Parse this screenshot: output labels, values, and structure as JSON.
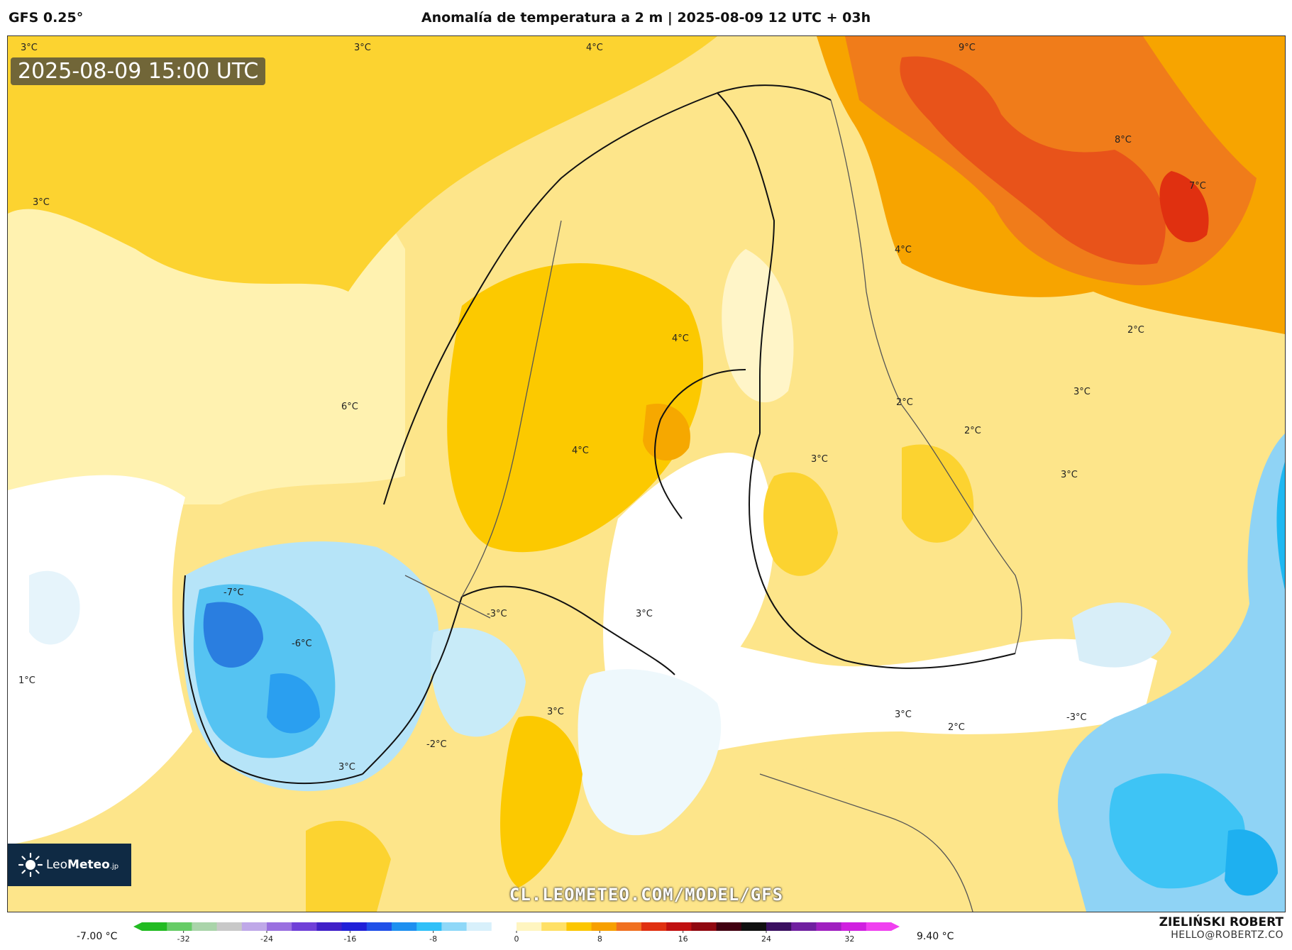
{
  "header": {
    "model": "GFS 0.25°",
    "title": "Anomalía de temperatura a 2 m | 2025-08-09 12 UTC + 03h"
  },
  "map": {
    "valid_time": "2025-08-09 15:00 UTC",
    "brand": {
      "logo_light": "Leo",
      "logo_bold": "Meteo",
      "logo_suffix": ".jp"
    },
    "url": "CL.LEOMETEO.COM/MODEL/GFS",
    "labels": [
      {
        "text": "3°C"
      },
      {
        "text": "3°C"
      },
      {
        "text": "4°C"
      },
      {
        "text": "9°C"
      },
      {
        "text": "8°C"
      },
      {
        "text": "7°C"
      },
      {
        "text": "3°C"
      },
      {
        "text": "4°C"
      },
      {
        "text": "2°C"
      },
      {
        "text": "4°C"
      },
      {
        "text": "3°C"
      },
      {
        "text": "2°C"
      },
      {
        "text": "2°C"
      },
      {
        "text": "3°C"
      },
      {
        "text": "3°C"
      },
      {
        "text": "6°C"
      },
      {
        "text": "4°C"
      },
      {
        "text": "-7°C"
      },
      {
        "text": "-3°C"
      },
      {
        "text": "3°C"
      },
      {
        "text": "-6°C"
      },
      {
        "text": "1°C"
      },
      {
        "text": "3°C"
      },
      {
        "text": "-2°C"
      },
      {
        "text": "3°C"
      },
      {
        "text": "3°C"
      },
      {
        "text": "2°C"
      },
      {
        "text": "-3°C"
      }
    ]
  },
  "colorbar": {
    "min_label": "-7.00 °C",
    "max_label": "9.40 °C",
    "ticks": [
      "-32",
      "-24",
      "-16",
      "-8",
      "0",
      "8",
      "16",
      "24",
      "32"
    ],
    "tick_values": [
      -32,
      -24,
      -16,
      -8,
      0,
      8,
      16,
      24,
      32
    ],
    "range": [
      -36,
      36
    ],
    "colors": [
      "#22bb22",
      "#66cc66",
      "#aad4aa",
      "#c8c8c8",
      "#bfa8e8",
      "#9a70e0",
      "#7040d8",
      "#4020c8",
      "#2020d8",
      "#2050e8",
      "#1e90f0",
      "#30c0f8",
      "#8fd8f8",
      "#d8f0fb",
      "#ffffff",
      "#fff5c0",
      "#ffe066",
      "#fcc600",
      "#f7a000",
      "#f07020",
      "#e03010",
      "#c01010",
      "#900810",
      "#400010",
      "#101010",
      "#3a1060",
      "#7020a0",
      "#a020c0",
      "#d020e0",
      "#f040f0"
    ]
  },
  "footer": {
    "author": "ZIELIŃSKI ROBERT",
    "email": "HELLO@ROBERTZ.CO"
  }
}
